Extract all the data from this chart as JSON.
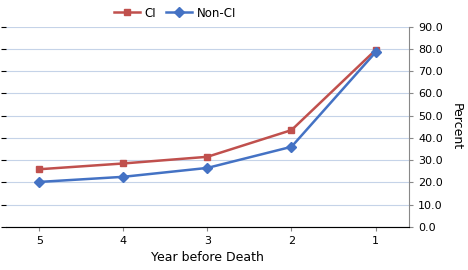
{
  "x": [
    5,
    4,
    3,
    2,
    1
  ],
  "ci_values": [
    25.9,
    28.5,
    31.5,
    43.5,
    79.5
  ],
  "non_ci_values": [
    20.2,
    22.5,
    26.5,
    36.0,
    78.5
  ],
  "ci_label": "CI",
  "non_ci_label": "Non-CI",
  "ci_color": "#c0504d",
  "non_ci_color": "#4472c4",
  "xlabel": "Year before Death",
  "ylabel": "Percent",
  "y_ticks": [
    0.0,
    10.0,
    20.0,
    30.0,
    40.0,
    50.0,
    60.0,
    70.0,
    80.0,
    90.0
  ],
  "ylim_min": 0,
  "ylim_max": 90,
  "plot_bg_color": "#ffffff",
  "fig_bg_color": "#ffffff",
  "grid_color": "#c5d3e8",
  "legend_fontsize": 8.5,
  "axis_label_fontsize": 9,
  "tick_fontsize": 8,
  "line_width": 1.8,
  "marker_size": 5
}
